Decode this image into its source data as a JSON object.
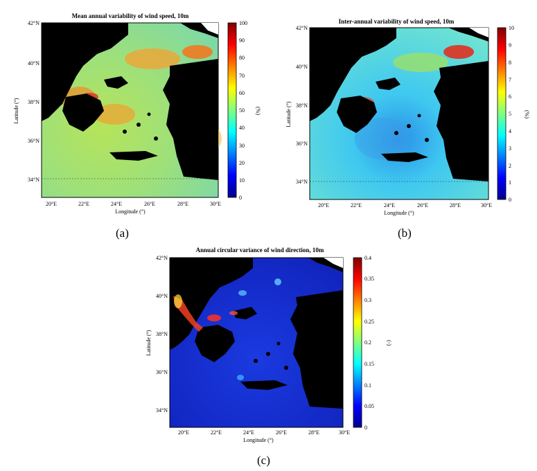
{
  "panels": [
    {
      "id": "a",
      "title": "Mean annual variability of wind speed, 10m",
      "caption": "(a)",
      "xlabel": "Longitude (°)",
      "ylabel": "Latitude (°)",
      "x_ticks": [
        "20°E",
        "22°E",
        "24°E",
        "26°E",
        "28°E",
        "30°E"
      ],
      "y_ticks": [
        "42°N",
        "40°N",
        "38°N",
        "36°N",
        "34°N"
      ],
      "colorbar_label": "(%)",
      "colorbar_ticks": [
        "0",
        "10",
        "20",
        "30",
        "40",
        "50",
        "60",
        "70",
        "80",
        "90",
        "100"
      ],
      "colormap": "jet",
      "sea_color": "#a8e06c",
      "land_color": "#000000"
    },
    {
      "id": "b",
      "title": "Inter-annual variability of wind speed, 10m",
      "caption": "(b)",
      "xlabel": "Longitude (°)",
      "ylabel": "Latitude (°)",
      "x_ticks": [
        "20°E",
        "22°E",
        "24°E",
        "26°E",
        "28°E",
        "30°E"
      ],
      "y_ticks": [
        "42°N",
        "40°N",
        "38°N",
        "36°N",
        "34°N"
      ],
      "colorbar_label": "(%)",
      "colorbar_ticks": [
        "0",
        "1",
        "2",
        "3",
        "4",
        "5",
        "6",
        "7",
        "8",
        "9",
        "10"
      ],
      "colormap": "jet",
      "sea_color": "#3fd3f0",
      "land_color": "#000000"
    },
    {
      "id": "c",
      "title": "Annual circular variance of wind direction, 10m",
      "caption": "(c)",
      "xlabel": "Longitude (°)",
      "ylabel": "Latitude (°)",
      "x_ticks": [
        "20°E",
        "22°E",
        "24°E",
        "26°E",
        "28°E",
        "30°E"
      ],
      "y_ticks": [
        "42°N",
        "40°N",
        "38°N",
        "36°N",
        "34°N"
      ],
      "colorbar_label": "(-)",
      "colorbar_ticks": [
        "0",
        "0.05",
        "0.1",
        "0.15",
        "0.2",
        "0.25",
        "0.3",
        "0.35",
        "0.4"
      ],
      "colormap": "jet",
      "sea_color": "#1530d0",
      "land_color": "#000000"
    }
  ]
}
